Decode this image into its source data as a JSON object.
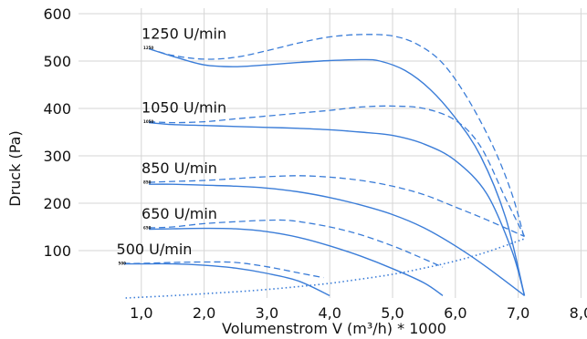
{
  "chart_data": {
    "type": "line",
    "xlabel": "Volumenstrom V (m³/h) * 1000",
    "ylabel": "Druck (Pa)",
    "xlim": [
      0.0,
      8.0
    ],
    "ylim": [
      0,
      600
    ],
    "xticks": [
      "1,0",
      "2,0",
      "3,0",
      "4,0",
      "5,0",
      "6,0",
      "7,0",
      "8,0"
    ],
    "yticks": [
      "100",
      "200",
      "300",
      "400",
      "500",
      "600"
    ],
    "grid": true,
    "color": "#3b7dd8",
    "speed_labels": [
      {
        "text": "1250 U/min",
        "tiny": "1250",
        "x": 1.12,
        "y": 528
      },
      {
        "text": "1050 U/min",
        "tiny": "1050",
        "x": 1.12,
        "y": 372
      },
      {
        "text": "850 U/min",
        "tiny": "850",
        "x": 1.12,
        "y": 244
      },
      {
        "text": "650 U/min",
        "tiny": "650",
        "x": 1.12,
        "y": 148
      },
      {
        "text": "500 U/min",
        "tiny": "500",
        "x": 0.72,
        "y": 73
      }
    ],
    "series": [
      {
        "style": "solid",
        "points": [
          [
            1.12,
            526
          ],
          [
            1.5,
            510
          ],
          [
            2.0,
            492
          ],
          [
            2.5,
            488
          ],
          [
            3.0,
            492
          ],
          [
            3.5,
            497
          ],
          [
            4.0,
            501
          ],
          [
            4.5,
            503
          ],
          [
            4.8,
            500
          ],
          [
            5.2,
            480
          ],
          [
            5.6,
            440
          ],
          [
            6.0,
            380
          ],
          [
            6.4,
            300
          ],
          [
            6.8,
            170
          ],
          [
            7.1,
            5
          ]
        ]
      },
      {
        "style": "dashed",
        "points": [
          [
            1.12,
            526
          ],
          [
            1.5,
            512
          ],
          [
            2.0,
            504
          ],
          [
            2.5,
            508
          ],
          [
            3.0,
            522
          ],
          [
            3.5,
            538
          ],
          [
            4.0,
            551
          ],
          [
            4.5,
            556
          ],
          [
            5.0,
            553
          ],
          [
            5.4,
            535
          ],
          [
            5.8,
            495
          ],
          [
            6.2,
            420
          ],
          [
            6.6,
            320
          ],
          [
            6.9,
            220
          ],
          [
            7.1,
            125
          ]
        ]
      },
      {
        "style": "solid",
        "points": [
          [
            1.12,
            370
          ],
          [
            1.5,
            366
          ],
          [
            2.0,
            364
          ],
          [
            2.5,
            362
          ],
          [
            3.0,
            360
          ],
          [
            3.5,
            358
          ],
          [
            4.0,
            355
          ],
          [
            4.5,
            350
          ],
          [
            5.0,
            343
          ],
          [
            5.5,
            325
          ],
          [
            6.0,
            290
          ],
          [
            6.5,
            220
          ],
          [
            6.9,
            100
          ],
          [
            7.1,
            5
          ]
        ]
      },
      {
        "style": "dashed",
        "points": [
          [
            1.12,
            372
          ],
          [
            1.5,
            370
          ],
          [
            2.0,
            372
          ],
          [
            2.5,
            378
          ],
          [
            3.0,
            384
          ],
          [
            3.5,
            390
          ],
          [
            4.0,
            396
          ],
          [
            4.5,
            403
          ],
          [
            5.0,
            405
          ],
          [
            5.5,
            400
          ],
          [
            6.0,
            375
          ],
          [
            6.4,
            320
          ],
          [
            6.8,
            210
          ],
          [
            7.1,
            130
          ]
        ]
      },
      {
        "style": "solid",
        "points": [
          [
            1.12,
            240
          ],
          [
            1.5,
            240
          ],
          [
            2.0,
            238
          ],
          [
            2.5,
            236
          ],
          [
            3.0,
            232
          ],
          [
            3.5,
            224
          ],
          [
            4.0,
            212
          ],
          [
            4.5,
            196
          ],
          [
            5.0,
            176
          ],
          [
            5.5,
            148
          ],
          [
            6.0,
            110
          ],
          [
            6.5,
            65
          ],
          [
            7.1,
            5
          ]
        ]
      },
      {
        "style": "dashed",
        "points": [
          [
            1.12,
            244
          ],
          [
            1.5,
            246
          ],
          [
            2.0,
            248
          ],
          [
            2.5,
            252
          ],
          [
            3.0,
            256
          ],
          [
            3.5,
            258
          ],
          [
            4.0,
            255
          ],
          [
            4.5,
            248
          ],
          [
            5.0,
            236
          ],
          [
            5.5,
            218
          ],
          [
            6.0,
            192
          ],
          [
            6.5,
            165
          ],
          [
            7.1,
            130
          ]
        ]
      },
      {
        "style": "solid",
        "points": [
          [
            1.12,
            145
          ],
          [
            1.5,
            146
          ],
          [
            2.0,
            147
          ],
          [
            2.5,
            146
          ],
          [
            3.0,
            140
          ],
          [
            3.5,
            128
          ],
          [
            4.0,
            110
          ],
          [
            4.5,
            88
          ],
          [
            5.0,
            62
          ],
          [
            5.5,
            32
          ],
          [
            5.8,
            5
          ]
        ]
      },
      {
        "style": "dashed",
        "points": [
          [
            1.12,
            148
          ],
          [
            1.5,
            150
          ],
          [
            2.0,
            157
          ],
          [
            2.5,
            161
          ],
          [
            3.0,
            164
          ],
          [
            3.4,
            163
          ],
          [
            4.0,
            150
          ],
          [
            4.5,
            133
          ],
          [
            5.0,
            110
          ],
          [
            5.4,
            88
          ],
          [
            5.8,
            65
          ]
        ]
      },
      {
        "style": "solid",
        "points": [
          [
            0.72,
            72
          ],
          [
            1.0,
            72
          ],
          [
            1.5,
            72
          ],
          [
            2.0,
            69
          ],
          [
            2.5,
            63
          ],
          [
            3.0,
            52
          ],
          [
            3.5,
            36
          ],
          [
            4.0,
            5
          ]
        ]
      },
      {
        "style": "dashed",
        "points": [
          [
            0.72,
            73
          ],
          [
            1.0,
            73
          ],
          [
            1.5,
            75
          ],
          [
            2.0,
            76
          ],
          [
            2.5,
            75
          ],
          [
            3.0,
            66
          ],
          [
            3.5,
            53
          ],
          [
            3.9,
            43
          ]
        ]
      },
      {
        "style": "dotted",
        "points": [
          [
            0.75,
            0
          ],
          [
            1.5,
            5
          ],
          [
            2.0,
            9
          ],
          [
            2.5,
            13
          ],
          [
            3.0,
            18
          ],
          [
            3.5,
            24
          ],
          [
            4.0,
            31
          ],
          [
            4.5,
            40
          ],
          [
            5.0,
            50
          ],
          [
            5.5,
            63
          ],
          [
            6.0,
            78
          ],
          [
            6.5,
            97
          ],
          [
            7.1,
            125
          ]
        ]
      }
    ]
  }
}
